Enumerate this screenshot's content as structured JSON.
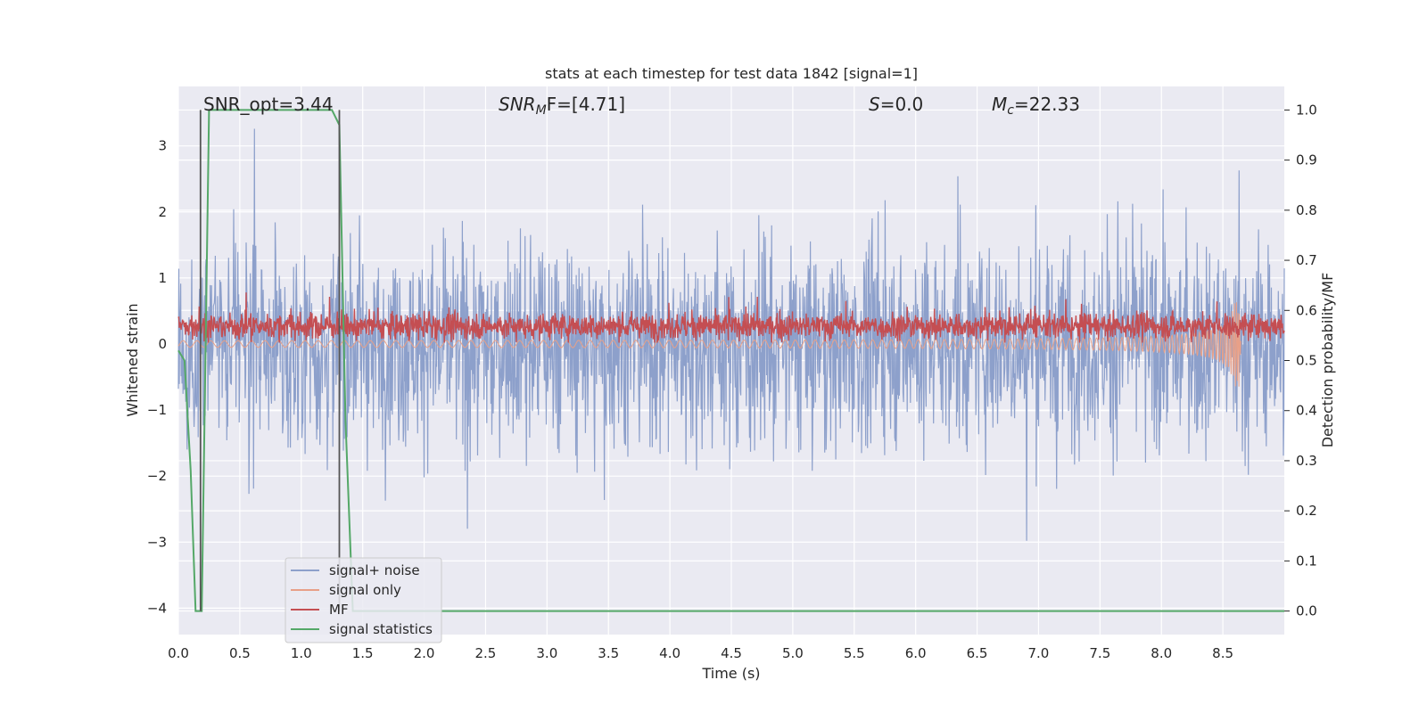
{
  "chart_data": {
    "type": "line",
    "title": "stats at each timestep for test data 1842 [signal=1]",
    "xlabel": "Time (s)",
    "ylabel_left": "Whitened strain",
    "ylabel_right": "Detection probability/MF",
    "xlim": [
      0.0,
      9.0
    ],
    "ylim_left": [
      -4.4,
      3.9
    ],
    "ylim_right": [
      -0.047,
      1.047
    ],
    "x_ticks": [
      0.0,
      0.5,
      1.0,
      1.5,
      2.0,
      2.5,
      3.0,
      3.5,
      4.0,
      4.5,
      5.0,
      5.5,
      6.0,
      6.5,
      7.0,
      7.5,
      8.0,
      8.5
    ],
    "y_ticks_left": [
      -4,
      -3,
      -2,
      -1,
      0,
      1,
      2,
      3
    ],
    "y_ticks_right": [
      0.0,
      0.1,
      0.2,
      0.3,
      0.4,
      0.5,
      0.6,
      0.7,
      0.8,
      0.9,
      1.0
    ],
    "grid": true,
    "legend_position": "lower-left",
    "annotations": {
      "snr_opt": "SNR_opt=3.44",
      "snr_mf_base": "SNR",
      "snr_mf_sub": "M",
      "snr_mf_rest": "F=[4.71]",
      "s_italic": "S",
      "s_rest": "=0.0",
      "mc_italic": "M",
      "mc_sub": "c",
      "mc_rest": "=22.33"
    },
    "vlines_x": [
      0.18,
      1.31
    ],
    "series": [
      {
        "name": "signal+ noise",
        "color": "#8da0cb",
        "axis": "left",
        "kind": "noise",
        "amplitude_range": [
          -3.9,
          3.6
        ]
      },
      {
        "name": "signal only",
        "color": "#e8a088",
        "axis": "left",
        "kind": "chirp",
        "peak_time": 8.65,
        "peak_amplitude": -0.65
      },
      {
        "name": "MF",
        "color": "#c44e52",
        "axis": "left",
        "kind": "mf",
        "mean": 0.27,
        "range": [
          0.02,
          0.95
        ]
      },
      {
        "name": "signal statistics",
        "color": "#55a868",
        "axis": "right",
        "kind": "line",
        "x": [
          0.0,
          0.05,
          0.1,
          0.14,
          0.19,
          0.25,
          0.3,
          0.5,
          1.0,
          1.25,
          1.31,
          1.36,
          1.42,
          1.5,
          9.0
        ],
        "y": [
          0.52,
          0.5,
          0.28,
          0.0,
          0.0,
          1.0,
          1.0,
          1.0,
          1.0,
          1.0,
          0.97,
          0.38,
          0.0,
          0.0,
          0.0
        ]
      }
    ]
  }
}
